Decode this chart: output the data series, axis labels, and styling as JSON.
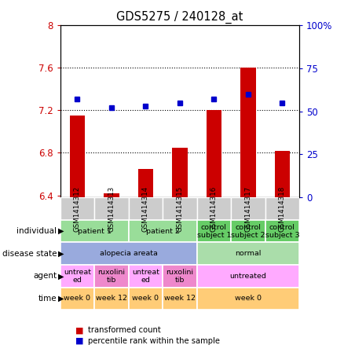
{
  "title": "GDS5275 / 240128_at",
  "samples": [
    "GSM1414312",
    "GSM1414313",
    "GSM1414314",
    "GSM1414315",
    "GSM1414316",
    "GSM1414317",
    "GSM1414318"
  ],
  "bar_values": [
    7.15,
    6.42,
    6.65,
    6.85,
    7.2,
    7.6,
    6.82
  ],
  "bar_base": 6.38,
  "dot_values": [
    57,
    52,
    53,
    55,
    57,
    60,
    55
  ],
  "ylim_left": [
    6.38,
    8.0
  ],
  "ylim_right": [
    0,
    100
  ],
  "yticks_left": [
    6.4,
    6.8,
    7.2,
    7.6,
    8.0
  ],
  "yticks_right": [
    0,
    25,
    50,
    75,
    100
  ],
  "ytick_labels_left": [
    "6.4",
    "6.8",
    "7.2",
    "7.6",
    "8"
  ],
  "ytick_labels_right": [
    "0",
    "25",
    "50",
    "75",
    "100%"
  ],
  "bar_color": "#cc0000",
  "dot_color": "#0000cc",
  "plot_bg_color": "#ffffff",
  "sample_cell_color": "#cccccc",
  "individual_row": {
    "label": "individual",
    "cells": [
      {
        "text": "patient 1",
        "span": 2,
        "color": "#99dd99"
      },
      {
        "text": "patient 2",
        "span": 2,
        "color": "#99dd99"
      },
      {
        "text": "control\nsubject 1",
        "span": 1,
        "color": "#66cc66"
      },
      {
        "text": "control\nsubject 2",
        "span": 1,
        "color": "#66cc66"
      },
      {
        "text": "control\nsubject 3",
        "span": 1,
        "color": "#66cc66"
      }
    ]
  },
  "disease_state_row": {
    "label": "disease state",
    "cells": [
      {
        "text": "alopecia areata",
        "span": 4,
        "color": "#99aadd"
      },
      {
        "text": "normal",
        "span": 3,
        "color": "#aaddaa"
      }
    ]
  },
  "agent_row": {
    "label": "agent",
    "cells": [
      {
        "text": "untreat\ned",
        "span": 1,
        "color": "#ffaaff"
      },
      {
        "text": "ruxolini\ntib",
        "span": 1,
        "color": "#ee88cc"
      },
      {
        "text": "untreat\ned",
        "span": 1,
        "color": "#ffaaff"
      },
      {
        "text": "ruxolini\ntib",
        "span": 1,
        "color": "#ee88cc"
      },
      {
        "text": "untreated",
        "span": 3,
        "color": "#ffaaff"
      }
    ]
  },
  "time_row": {
    "label": "time",
    "cells": [
      {
        "text": "week 0",
        "span": 1,
        "color": "#ffcc77"
      },
      {
        "text": "week 12",
        "span": 1,
        "color": "#ffcc77"
      },
      {
        "text": "week 0",
        "span": 1,
        "color": "#ffcc77"
      },
      {
        "text": "week 12",
        "span": 1,
        "color": "#ffcc77"
      },
      {
        "text": "week 0",
        "span": 3,
        "color": "#ffcc77"
      }
    ]
  }
}
